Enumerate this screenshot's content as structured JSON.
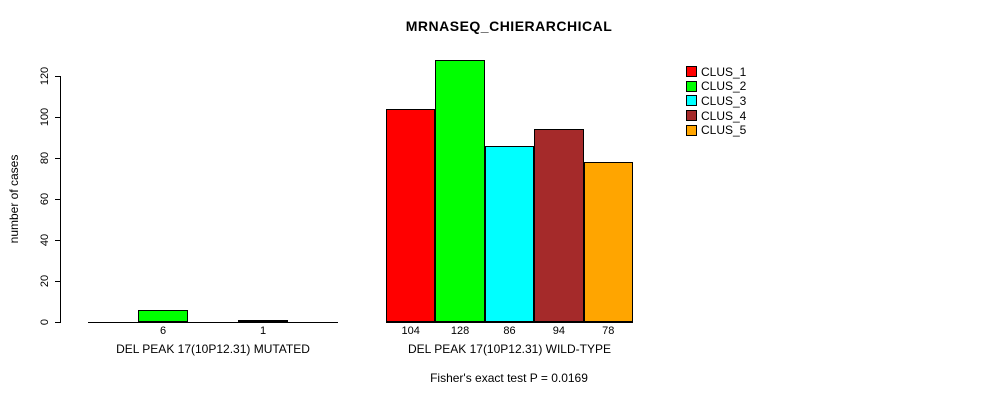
{
  "chart_data": {
    "type": "bar",
    "title": "MRNASEQ_CHIERARCHICAL",
    "ylabel": "number of cases",
    "xlabel": "",
    "ylim": [
      0,
      128
    ],
    "yticks": [
      0,
      20,
      40,
      60,
      80,
      100,
      120
    ],
    "grid": false,
    "legend_position": "top-right",
    "legend": [
      {
        "name": "CLUS_1",
        "color": "#FF0000"
      },
      {
        "name": "CLUS_2",
        "color": "#00FF00"
      },
      {
        "name": "CLUS_3",
        "color": "#00FFFF"
      },
      {
        "name": "CLUS_4",
        "color": "#A52A2A"
      },
      {
        "name": "CLUS_5",
        "color": "#FFA500"
      }
    ],
    "categories": [
      "CLUS_1",
      "CLUS_2",
      "CLUS_3",
      "CLUS_4",
      "CLUS_5"
    ],
    "groups": [
      {
        "label": "DEL PEAK 17(10P12.31) MUTATED",
        "values": [
          0,
          6,
          0,
          1,
          0
        ],
        "value_labels": [
          "",
          "6",
          "",
          "1",
          ""
        ]
      },
      {
        "label": "DEL PEAK 17(10P12.31) WILD-TYPE",
        "values": [
          104,
          128,
          86,
          94,
          78
        ],
        "value_labels": [
          "104",
          "128",
          "86",
          "94",
          "78"
        ]
      }
    ],
    "footnote": "Fisher's exact test P = 0.0169"
  }
}
